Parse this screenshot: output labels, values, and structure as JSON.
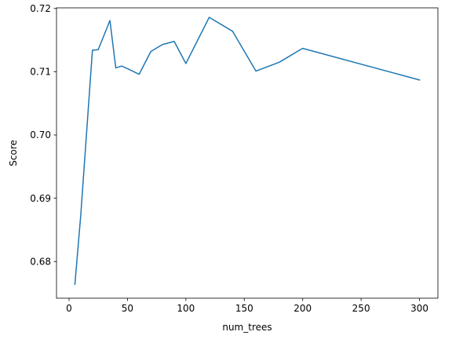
{
  "chart_data": {
    "type": "line",
    "title": "",
    "xlabel": "num_trees",
    "ylabel": "Score",
    "xlim": [
      -10.75,
      315.75
    ],
    "ylim": [
      0.6742,
      0.7201
    ],
    "xticks": [
      0,
      50,
      100,
      150,
      200,
      250,
      300
    ],
    "xtick_labels": [
      "0",
      "50",
      "100",
      "150",
      "200",
      "250",
      "300"
    ],
    "yticks": [
      0.68,
      0.69,
      0.7,
      0.71,
      0.72
    ],
    "ytick_labels": [
      "0.68",
      "0.69",
      "0.70",
      "0.71",
      "0.72"
    ],
    "grid": false,
    "legend": "none",
    "series": [
      {
        "color": "#1f77b4",
        "x": [
          5,
          10,
          20,
          25,
          35,
          40,
          45,
          50,
          60,
          70,
          80,
          90,
          100,
          120,
          140,
          160,
          180,
          200,
          300
        ],
        "y": [
          0.6764,
          0.6873,
          0.7134,
          0.7135,
          0.7181,
          0.7106,
          0.7109,
          0.7105,
          0.7096,
          0.7132,
          0.7143,
          0.7148,
          0.7113,
          0.7186,
          0.7164,
          0.7101,
          0.7115,
          0.7137,
          0.7087
        ]
      }
    ]
  }
}
